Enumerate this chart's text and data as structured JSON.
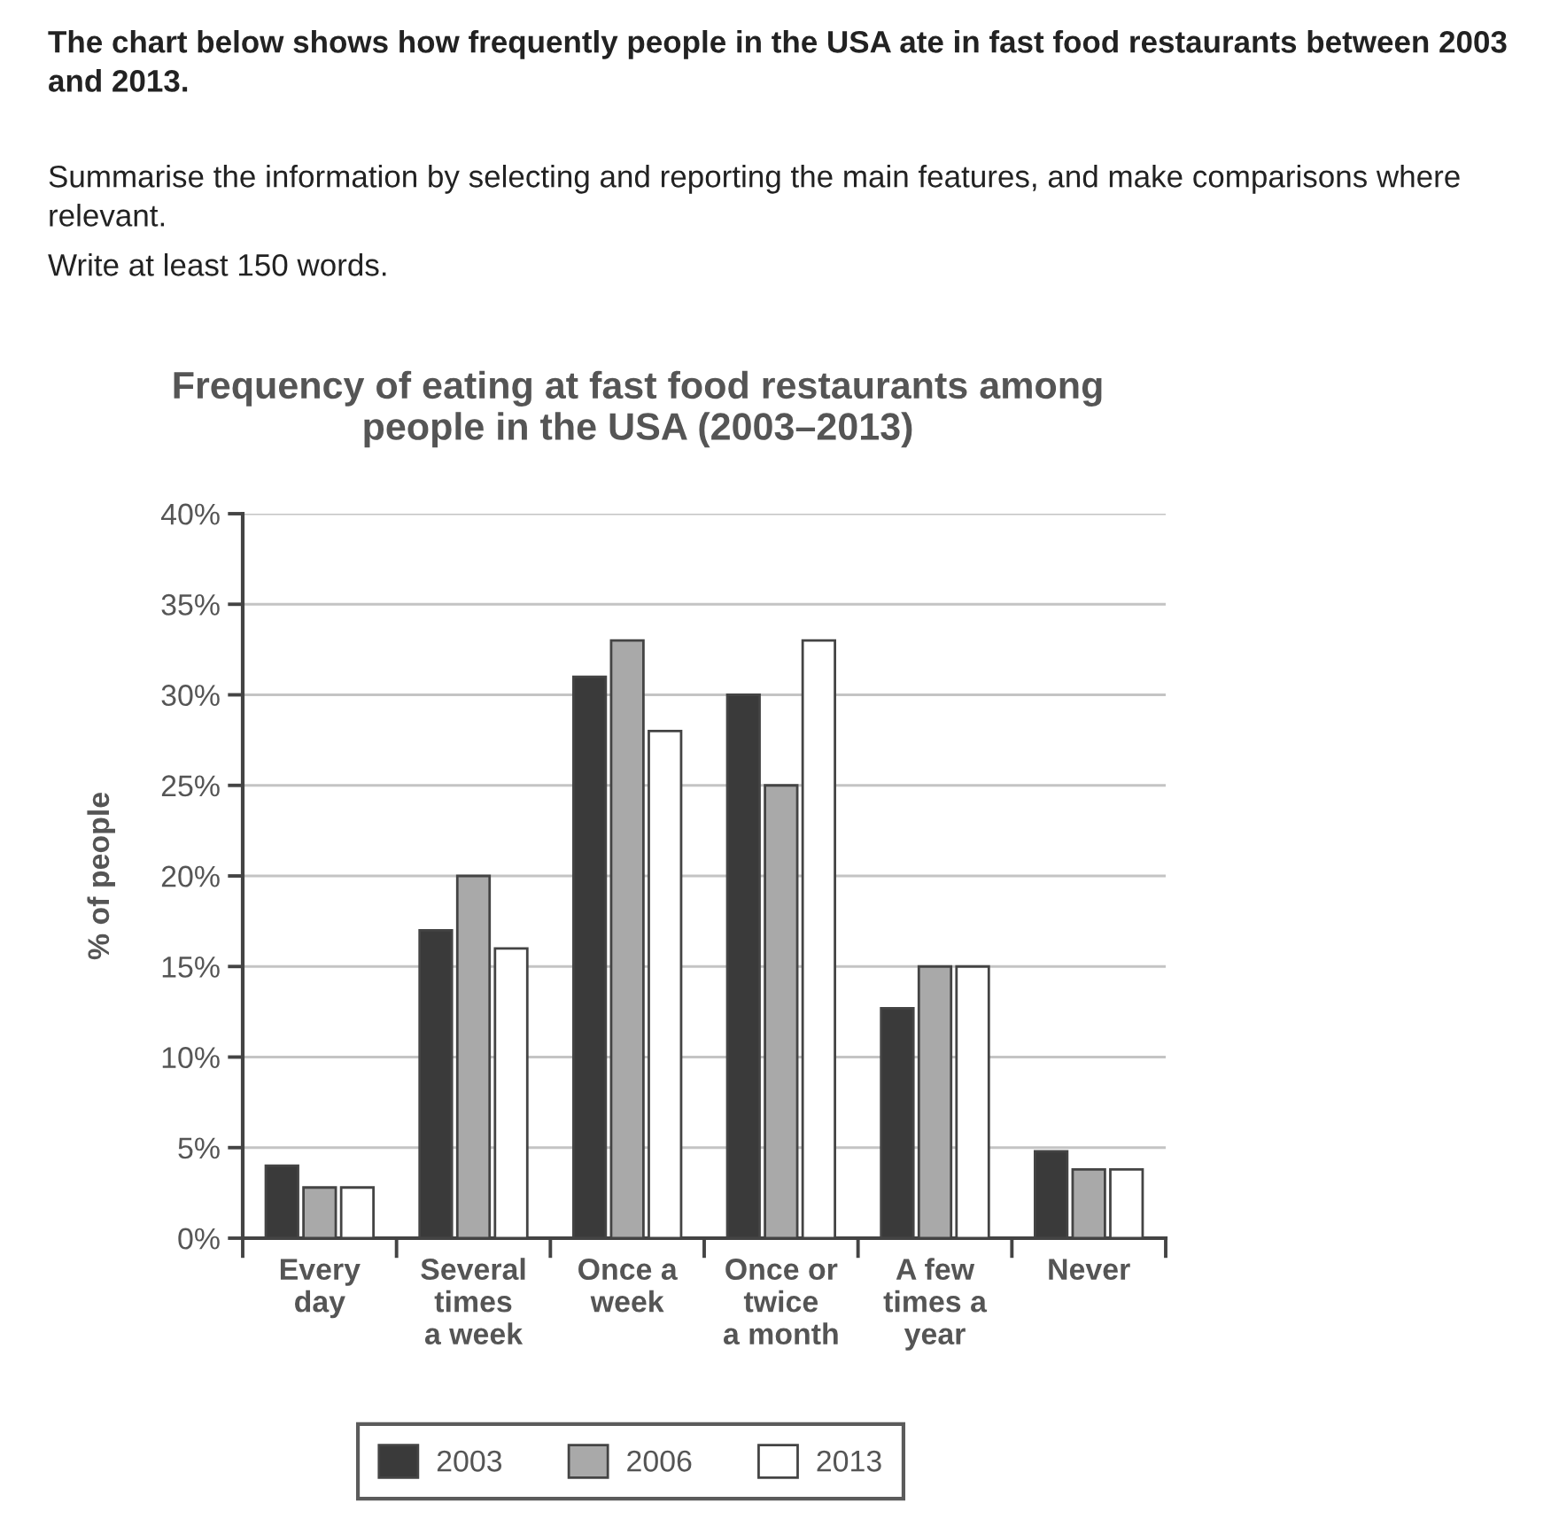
{
  "chart_data": {
    "type": "bar",
    "title": "Frequency of eating at fast food restaurants among\npeople in the USA (2003–2013)",
    "ylabel": "% of people",
    "annotations": [
      "The chart below shows how frequently people in the USA ate in fast food restaurants between 2003\nand 2013.",
      "Summarise the information by selecting and reporting the main features, and make comparisons where\nrelevant.",
      "Write at least 150 words."
    ],
    "categories": [
      "Every\nday",
      "Several\ntimes\na week",
      "Once a\nweek",
      "Once or\ntwice\na month",
      "A few\ntimes a\nyear",
      "Never"
    ],
    "series": [
      {
        "name": "2003",
        "color": "#3a3a3a",
        "values": [
          4,
          17,
          31,
          30,
          12.7,
          4.8
        ]
      },
      {
        "name": "2006",
        "color": "#a9a9a9",
        "values": [
          2.8,
          20,
          33,
          25,
          15,
          3.8
        ]
      },
      {
        "name": "2013",
        "color": "#ffffff",
        "values": [
          2.8,
          16,
          28,
          33,
          15,
          3.8
        ]
      }
    ],
    "ylim": [
      0,
      40
    ],
    "yticks": [
      {
        "value": 0,
        "label": "0%"
      },
      {
        "value": 5,
        "label": "5%"
      },
      {
        "value": 10,
        "label": "10%"
      },
      {
        "value": 15,
        "label": "15%"
      },
      {
        "value": 20,
        "label": "20%"
      },
      {
        "value": 25,
        "label": "25%"
      },
      {
        "value": 30,
        "label": "30%"
      },
      {
        "value": 35,
        "label": "35%"
      },
      {
        "value": 40,
        "label": "40%"
      }
    ],
    "grid": "y",
    "legend": "bottom"
  }
}
